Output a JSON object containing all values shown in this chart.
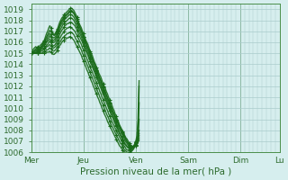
{
  "title": "",
  "xlabel": "Pression niveau de la mer( hPa )",
  "ylabel": "",
  "ylim": [
    1006,
    1019.5
  ],
  "yticks": [
    1006,
    1007,
    1008,
    1009,
    1010,
    1011,
    1012,
    1013,
    1014,
    1015,
    1016,
    1017,
    1018,
    1019
  ],
  "xtick_labels": [
    "Mer",
    "Jeu",
    "Ven",
    "Sam",
    "Dim",
    "Lu"
  ],
  "xtick_positions": [
    0,
    48,
    96,
    144,
    192,
    228
  ],
  "bg_color": "#d6eeee",
  "grid_color": "#aacccc",
  "line_color": "#1a6b1a",
  "marker_color": "#1a6b1a",
  "total_points": 240,
  "lines": [
    [
      1015.0,
      1015.2,
      1015.4,
      1015.5,
      1015.6,
      1015.5,
      1015.4,
      1015.3,
      1015.5,
      1015.6,
      1015.8,
      1016.0,
      1016.2,
      1016.5,
      1016.8,
      1017.0,
      1017.3,
      1017.5,
      1017.3,
      1017.0,
      1016.8,
      1016.7,
      1016.8,
      1017.0,
      1017.2,
      1017.5,
      1017.8,
      1018.0,
      1018.2,
      1018.3,
      1018.5,
      1018.6,
      1018.7,
      1018.8,
      1018.9,
      1019.0,
      1019.1,
      1019.1,
      1019.0,
      1018.9,
      1018.7,
      1018.5,
      1018.3,
      1018.0,
      1017.7,
      1017.5,
      1017.3,
      1017.0,
      1016.8,
      1016.5,
      1016.2,
      1016.0,
      1015.8,
      1015.5,
      1015.2,
      1015.0,
      1014.8,
      1014.5,
      1014.2,
      1014.0,
      1013.7,
      1013.5,
      1013.2,
      1013.0,
      1012.8,
      1012.5,
      1012.2,
      1012.0,
      1011.8,
      1011.5,
      1011.3,
      1011.0,
      1010.8,
      1010.5,
      1010.3,
      1010.0,
      1009.8,
      1009.5,
      1009.3,
      1009.0,
      1008.8,
      1008.5,
      1008.3,
      1008.1,
      1007.9,
      1007.7,
      1007.5,
      1007.3,
      1007.2,
      1007.0,
      1006.8,
      1006.7,
      1006.6,
      1006.5,
      1006.5,
      1006.5,
      1006.6,
      1006.7,
      1006.9,
      1007.1
    ],
    [
      1015.0,
      1015.1,
      1015.2,
      1015.3,
      1015.4,
      1015.5,
      1015.6,
      1015.6,
      1015.7,
      1015.8,
      1015.9,
      1016.0,
      1016.1,
      1016.3,
      1016.5,
      1016.7,
      1016.9,
      1017.1,
      1017.0,
      1016.8,
      1016.7,
      1016.6,
      1016.7,
      1016.9,
      1017.1,
      1017.3,
      1017.6,
      1017.8,
      1018.0,
      1018.1,
      1018.3,
      1018.4,
      1018.5,
      1018.6,
      1018.7,
      1018.8,
      1018.9,
      1018.9,
      1018.8,
      1018.7,
      1018.5,
      1018.3,
      1018.1,
      1017.8,
      1017.5,
      1017.3,
      1017.1,
      1016.8,
      1016.5,
      1016.3,
      1016.0,
      1015.8,
      1015.5,
      1015.3,
      1015.0,
      1014.8,
      1014.5,
      1014.2,
      1014.0,
      1013.7,
      1013.5,
      1013.2,
      1013.0,
      1012.7,
      1012.5,
      1012.2,
      1012.0,
      1011.7,
      1011.5,
      1011.2,
      1011.0,
      1010.7,
      1010.5,
      1010.2,
      1010.0,
      1009.7,
      1009.5,
      1009.2,
      1009.0,
      1008.8,
      1008.6,
      1008.4,
      1008.2,
      1008.0,
      1007.8,
      1007.6,
      1007.4,
      1007.2,
      1007.0,
      1006.9,
      1006.7,
      1006.6,
      1006.5,
      1006.5,
      1006.5,
      1006.5,
      1006.6,
      1006.8,
      1007.0,
      1007.3
    ],
    [
      1015.0,
      1015.0,
      1015.1,
      1015.2,
      1015.3,
      1015.3,
      1015.4,
      1015.4,
      1015.5,
      1015.6,
      1015.7,
      1015.8,
      1016.0,
      1016.2,
      1016.3,
      1016.5,
      1016.7,
      1016.8,
      1016.7,
      1016.5,
      1016.4,
      1016.4,
      1016.5,
      1016.7,
      1017.0,
      1017.2,
      1017.5,
      1017.7,
      1017.9,
      1018.0,
      1018.2,
      1018.3,
      1018.4,
      1018.5,
      1018.6,
      1018.7,
      1018.8,
      1018.8,
      1018.7,
      1018.6,
      1018.4,
      1018.2,
      1018.0,
      1017.7,
      1017.5,
      1017.2,
      1017.0,
      1016.7,
      1016.5,
      1016.2,
      1016.0,
      1015.7,
      1015.5,
      1015.2,
      1015.0,
      1014.7,
      1014.5,
      1014.2,
      1014.0,
      1013.7,
      1013.4,
      1013.2,
      1012.9,
      1012.7,
      1012.4,
      1012.2,
      1011.9,
      1011.7,
      1011.4,
      1011.2,
      1010.9,
      1010.7,
      1010.4,
      1010.2,
      1009.9,
      1009.7,
      1009.5,
      1009.2,
      1009.0,
      1008.8,
      1008.5,
      1008.3,
      1008.1,
      1007.9,
      1007.7,
      1007.5,
      1007.3,
      1007.1,
      1006.9,
      1006.8,
      1006.6,
      1006.5,
      1006.5,
      1006.5,
      1006.5,
      1006.6,
      1006.7,
      1006.9,
      1007.2,
      1007.5
    ],
    [
      1015.0,
      1015.0,
      1015.0,
      1015.1,
      1015.2,
      1015.2,
      1015.3,
      1015.3,
      1015.4,
      1015.5,
      1015.6,
      1015.7,
      1015.8,
      1016.0,
      1016.1,
      1016.3,
      1016.4,
      1016.6,
      1016.5,
      1016.3,
      1016.2,
      1016.2,
      1016.3,
      1016.5,
      1016.8,
      1017.0,
      1017.3,
      1017.5,
      1017.7,
      1017.8,
      1018.0,
      1018.1,
      1018.2,
      1018.3,
      1018.4,
      1018.5,
      1018.5,
      1018.5,
      1018.4,
      1018.3,
      1018.1,
      1017.9,
      1017.7,
      1017.5,
      1017.2,
      1017.0,
      1016.7,
      1016.5,
      1016.2,
      1016.0,
      1015.7,
      1015.5,
      1015.2,
      1015.0,
      1014.7,
      1014.5,
      1014.2,
      1013.9,
      1013.7,
      1013.4,
      1013.2,
      1012.9,
      1012.7,
      1012.4,
      1012.2,
      1011.9,
      1011.7,
      1011.4,
      1011.2,
      1010.9,
      1010.7,
      1010.4,
      1010.2,
      1009.9,
      1009.7,
      1009.5,
      1009.2,
      1009.0,
      1008.8,
      1008.5,
      1008.3,
      1008.1,
      1007.9,
      1007.7,
      1007.5,
      1007.3,
      1007.1,
      1006.9,
      1006.8,
      1006.6,
      1006.5,
      1006.5,
      1006.5,
      1006.5,
      1006.6,
      1006.7,
      1006.9,
      1007.1,
      1007.4,
      1007.7
    ],
    [
      1015.0,
      1015.0,
      1015.0,
      1015.0,
      1015.1,
      1015.1,
      1015.2,
      1015.2,
      1015.3,
      1015.4,
      1015.5,
      1015.6,
      1015.7,
      1015.8,
      1016.0,
      1016.1,
      1016.2,
      1016.3,
      1016.2,
      1016.1,
      1016.0,
      1016.0,
      1016.1,
      1016.3,
      1016.5,
      1016.8,
      1017.0,
      1017.2,
      1017.4,
      1017.6,
      1017.7,
      1017.8,
      1017.9,
      1018.0,
      1018.1,
      1018.2,
      1018.2,
      1018.2,
      1018.1,
      1018.0,
      1017.8,
      1017.6,
      1017.4,
      1017.2,
      1016.9,
      1016.7,
      1016.5,
      1016.2,
      1016.0,
      1015.7,
      1015.5,
      1015.2,
      1015.0,
      1014.7,
      1014.5,
      1014.2,
      1014.0,
      1013.7,
      1013.5,
      1013.2,
      1013.0,
      1012.7,
      1012.5,
      1012.2,
      1012.0,
      1011.7,
      1011.5,
      1011.2,
      1011.0,
      1010.7,
      1010.5,
      1010.2,
      1010.0,
      1009.7,
      1009.5,
      1009.2,
      1009.0,
      1008.8,
      1008.5,
      1008.3,
      1008.1,
      1007.8,
      1007.6,
      1007.4,
      1007.2,
      1007.0,
      1006.8,
      1006.7,
      1006.5,
      1006.4,
      1006.4,
      1006.4,
      1006.4,
      1006.5,
      1006.6,
      1006.7,
      1006.9,
      1007.1,
      1007.4,
      1008.0
    ],
    [
      1015.0,
      1015.0,
      1015.0,
      1015.0,
      1015.0,
      1015.0,
      1015.1,
      1015.1,
      1015.2,
      1015.3,
      1015.4,
      1015.4,
      1015.5,
      1015.6,
      1015.7,
      1015.8,
      1016.0,
      1016.1,
      1016.0,
      1015.8,
      1015.7,
      1015.7,
      1015.8,
      1016.0,
      1016.2,
      1016.4,
      1016.7,
      1016.9,
      1017.1,
      1017.2,
      1017.4,
      1017.5,
      1017.6,
      1017.7,
      1017.7,
      1017.8,
      1017.8,
      1017.8,
      1017.7,
      1017.6,
      1017.5,
      1017.3,
      1017.1,
      1016.8,
      1016.6,
      1016.4,
      1016.2,
      1016.0,
      1015.7,
      1015.5,
      1015.2,
      1015.0,
      1014.8,
      1014.5,
      1014.3,
      1014.0,
      1013.8,
      1013.5,
      1013.3,
      1013.0,
      1012.8,
      1012.5,
      1012.3,
      1012.0,
      1011.8,
      1011.5,
      1011.3,
      1011.0,
      1010.8,
      1010.5,
      1010.3,
      1010.0,
      1009.8,
      1009.5,
      1009.3,
      1009.1,
      1008.8,
      1008.6,
      1008.4,
      1008.2,
      1007.9,
      1007.7,
      1007.5,
      1007.3,
      1007.1,
      1006.9,
      1006.7,
      1006.6,
      1006.5,
      1006.4,
      1006.3,
      1006.3,
      1006.3,
      1006.4,
      1006.5,
      1006.6,
      1006.8,
      1007.0,
      1007.4,
      1009.0
    ],
    [
      1015.0,
      1015.0,
      1015.0,
      1015.0,
      1015.0,
      1015.0,
      1015.0,
      1015.0,
      1015.1,
      1015.2,
      1015.2,
      1015.3,
      1015.4,
      1015.5,
      1015.6,
      1015.6,
      1015.7,
      1015.8,
      1015.7,
      1015.6,
      1015.5,
      1015.5,
      1015.6,
      1015.7,
      1015.9,
      1016.1,
      1016.3,
      1016.5,
      1016.7,
      1016.8,
      1017.0,
      1017.1,
      1017.2,
      1017.3,
      1017.3,
      1017.4,
      1017.4,
      1017.3,
      1017.2,
      1017.1,
      1017.0,
      1016.8,
      1016.6,
      1016.4,
      1016.2,
      1016.0,
      1015.8,
      1015.5,
      1015.3,
      1015.0,
      1014.8,
      1014.5,
      1014.3,
      1014.0,
      1013.8,
      1013.5,
      1013.3,
      1013.0,
      1012.8,
      1012.5,
      1012.3,
      1012.0,
      1011.8,
      1011.5,
      1011.3,
      1011.0,
      1010.8,
      1010.5,
      1010.3,
      1010.0,
      1009.8,
      1009.5,
      1009.3,
      1009.1,
      1008.8,
      1008.6,
      1008.4,
      1008.2,
      1008.0,
      1007.8,
      1007.6,
      1007.4,
      1007.2,
      1007.0,
      1006.8,
      1006.6,
      1006.5,
      1006.3,
      1006.2,
      1006.2,
      1006.2,
      1006.2,
      1006.3,
      1006.4,
      1006.5,
      1006.7,
      1006.9,
      1007.2,
      1007.6,
      1010.5
    ],
    [
      1015.0,
      1015.0,
      1015.0,
      1015.0,
      1015.0,
      1015.0,
      1015.0,
      1015.0,
      1015.0,
      1015.0,
      1015.0,
      1015.1,
      1015.2,
      1015.2,
      1015.3,
      1015.3,
      1015.4,
      1015.5,
      1015.4,
      1015.3,
      1015.2,
      1015.2,
      1015.3,
      1015.4,
      1015.6,
      1015.8,
      1016.0,
      1016.1,
      1016.3,
      1016.4,
      1016.5,
      1016.6,
      1016.7,
      1016.8,
      1016.8,
      1016.9,
      1016.9,
      1016.9,
      1016.8,
      1016.7,
      1016.5,
      1016.3,
      1016.1,
      1015.9,
      1015.7,
      1015.5,
      1015.3,
      1015.0,
      1014.8,
      1014.5,
      1014.3,
      1014.0,
      1013.8,
      1013.5,
      1013.3,
      1013.0,
      1012.8,
      1012.5,
      1012.3,
      1012.0,
      1011.8,
      1011.5,
      1011.3,
      1011.0,
      1010.8,
      1010.5,
      1010.3,
      1010.0,
      1009.8,
      1009.5,
      1009.3,
      1009.1,
      1008.8,
      1008.6,
      1008.4,
      1008.2,
      1008.0,
      1007.8,
      1007.6,
      1007.4,
      1007.2,
      1007.0,
      1006.8,
      1006.7,
      1006.5,
      1006.3,
      1006.2,
      1006.1,
      1006.0,
      1006.0,
      1006.0,
      1006.0,
      1006.1,
      1006.2,
      1006.3,
      1006.5,
      1006.7,
      1006.9,
      1007.4,
      1012.0
    ],
    [
      1015.0,
      1015.0,
      1015.0,
      1015.0,
      1015.0,
      1015.0,
      1015.0,
      1015.0,
      1015.0,
      1015.0,
      1015.0,
      1015.0,
      1015.0,
      1015.0,
      1015.1,
      1015.1,
      1015.1,
      1015.2,
      1015.1,
      1015.0,
      1014.9,
      1014.9,
      1015.0,
      1015.1,
      1015.3,
      1015.5,
      1015.7,
      1015.8,
      1016.0,
      1016.1,
      1016.2,
      1016.3,
      1016.3,
      1016.4,
      1016.4,
      1016.5,
      1016.5,
      1016.4,
      1016.3,
      1016.2,
      1016.0,
      1015.8,
      1015.6,
      1015.4,
      1015.2,
      1015.0,
      1014.8,
      1014.5,
      1014.3,
      1014.0,
      1013.8,
      1013.5,
      1013.3,
      1013.0,
      1012.8,
      1012.5,
      1012.3,
      1012.0,
      1011.8,
      1011.5,
      1011.3,
      1011.0,
      1010.8,
      1010.5,
      1010.3,
      1010.0,
      1009.8,
      1009.5,
      1009.3,
      1009.1,
      1008.8,
      1008.6,
      1008.4,
      1008.2,
      1008.0,
      1007.8,
      1007.6,
      1007.4,
      1007.2,
      1007.0,
      1006.8,
      1006.6,
      1006.5,
      1006.3,
      1006.2,
      1006.1,
      1006.0,
      1005.9,
      1005.9,
      1005.9,
      1005.9,
      1006.0,
      1006.1,
      1006.2,
      1006.4,
      1006.6,
      1007.0,
      1007.5,
      1009.0,
      1012.5
    ]
  ],
  "marker_indices_step": 6,
  "line_alpha": 0.9,
  "linewidth": 1.0
}
